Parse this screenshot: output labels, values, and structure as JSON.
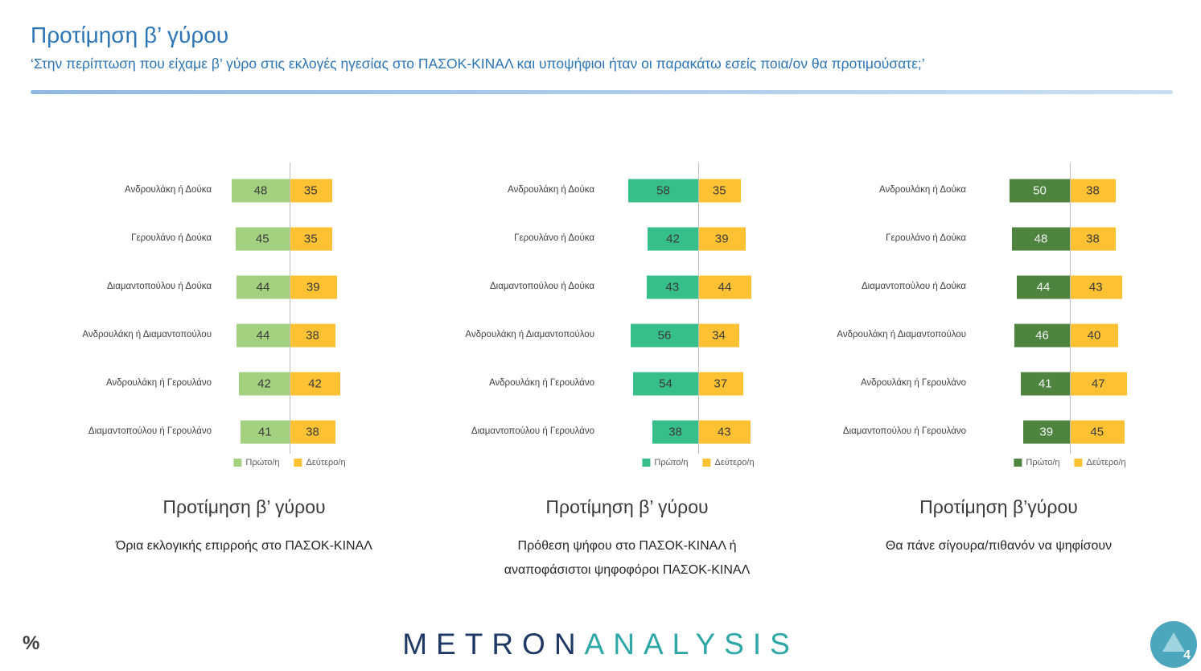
{
  "header": {
    "title": "Προτίμηση β’ γύρου",
    "subtitle": "‘Στην περίπτωση που είχαμε β’ γύρο στις εκλογές ηγεσίας στο ΠΑΣΟΚ-ΚΙΝΑΛ και υποψήφιοι ήταν οι παρακάτω εσείς ποια/ον θα προτιμούσατε;’"
  },
  "colors": {
    "title_blue": "#2E75B6",
    "divider_blue": "#A8C7E8",
    "axis_gray": "#BFBFBF",
    "logo_metron_navy": "#1F3864",
    "logo_analysis_teal": "#2EA8A6",
    "badge_teal": "#4CA6BC"
  },
  "chart_data": [
    {
      "type": "bar",
      "orientation": "horizontal-diverging",
      "legend_position": "bottom-center",
      "xlim": [
        0,
        60
      ],
      "categories": [
        "Ανδρουλάκη ή Δούκα",
        "Γερουλάνο ή Δούκα",
        "Διαμαντοπούλου ή Δούκα",
        "Ανδρουλάκη ή Διαμαντοπούλου",
        "Ανδρουλάκη ή Γερουλάνο",
        "Διαμαντοπούλου ή Γερουλάνο"
      ],
      "series": [
        {
          "name": "Πρώτο/η",
          "values": [
            48,
            45,
            44,
            44,
            42,
            41
          ],
          "color": "#A3D180",
          "text_color": "#3b3b3b"
        },
        {
          "name": "Δεύτερο/η",
          "values": [
            35,
            35,
            39,
            38,
            42,
            38
          ],
          "color": "#FDC234",
          "text_color": "#3b3b3b"
        }
      ],
      "caption": "Προτίμηση β’ γύρου",
      "subcaption": "Όρια εκλογικής επιρροής στο ΠΑΣΟΚ-ΚΙΝΑΛ"
    },
    {
      "type": "bar",
      "orientation": "horizontal-diverging",
      "legend_position": "bottom-center",
      "xlim": [
        0,
        60
      ],
      "categories": [
        "Ανδρουλάκη ή Δούκα",
        "Γερουλάνο ή Δούκα",
        "Διαμαντοπούλου ή Δούκα",
        "Ανδρουλάκη ή Διαμαντοπούλου",
        "Ανδρουλάκη ή Γερουλάνο",
        "Διαμαντοπούλου ή Γερουλάνο"
      ],
      "series": [
        {
          "name": "Πρώτο/η",
          "values": [
            58,
            42,
            43,
            56,
            54,
            38
          ],
          "color": "#36BE8B",
          "text_color": "#3b3b3b"
        },
        {
          "name": "Δεύτερο/η",
          "values": [
            35,
            39,
            44,
            34,
            37,
            43
          ],
          "color": "#FDC234",
          "text_color": "#3b3b3b"
        }
      ],
      "caption": "Προτίμηση β’ γύρου",
      "subcaption": "Πρόθεση ψήφου στο ΠΑΣΟΚ-ΚΙΝΑΛ ή αναποφάσιστοι ψηφοφόροι ΠΑΣΟΚ-ΚΙΝΑΛ"
    },
    {
      "type": "bar",
      "orientation": "horizontal-diverging",
      "legend_position": "bottom-center",
      "xlim": [
        0,
        60
      ],
      "categories": [
        "Ανδρουλάκη ή Δούκα",
        "Γερουλάνο ή Δούκα",
        "Διαμαντοπούλου ή Δούκα",
        "Ανδρουλάκη ή Διαμαντοπούλου",
        "Ανδρουλάκη ή Γερουλάνο",
        "Διαμαντοπούλου ή Γερουλάνο"
      ],
      "series": [
        {
          "name": "Πρώτο/η",
          "values": [
            50,
            48,
            44,
            46,
            41,
            39
          ],
          "color": "#4E8440",
          "text_color": "#F2F2F2"
        },
        {
          "name": "Δεύτερο/η",
          "values": [
            38,
            38,
            43,
            40,
            47,
            45
          ],
          "color": "#FDC234",
          "text_color": "#3b3b3b"
        }
      ],
      "caption": "Προτίμηση β’γύρου",
      "subcaption": "Θα πάνε σίγουρα/πιθανόν να ψηφίσουν"
    }
  ],
  "footer": {
    "percent_label": "%",
    "logo": {
      "part1": "METRON",
      "part2": "ANALYSIS"
    },
    "page_number": "4"
  }
}
